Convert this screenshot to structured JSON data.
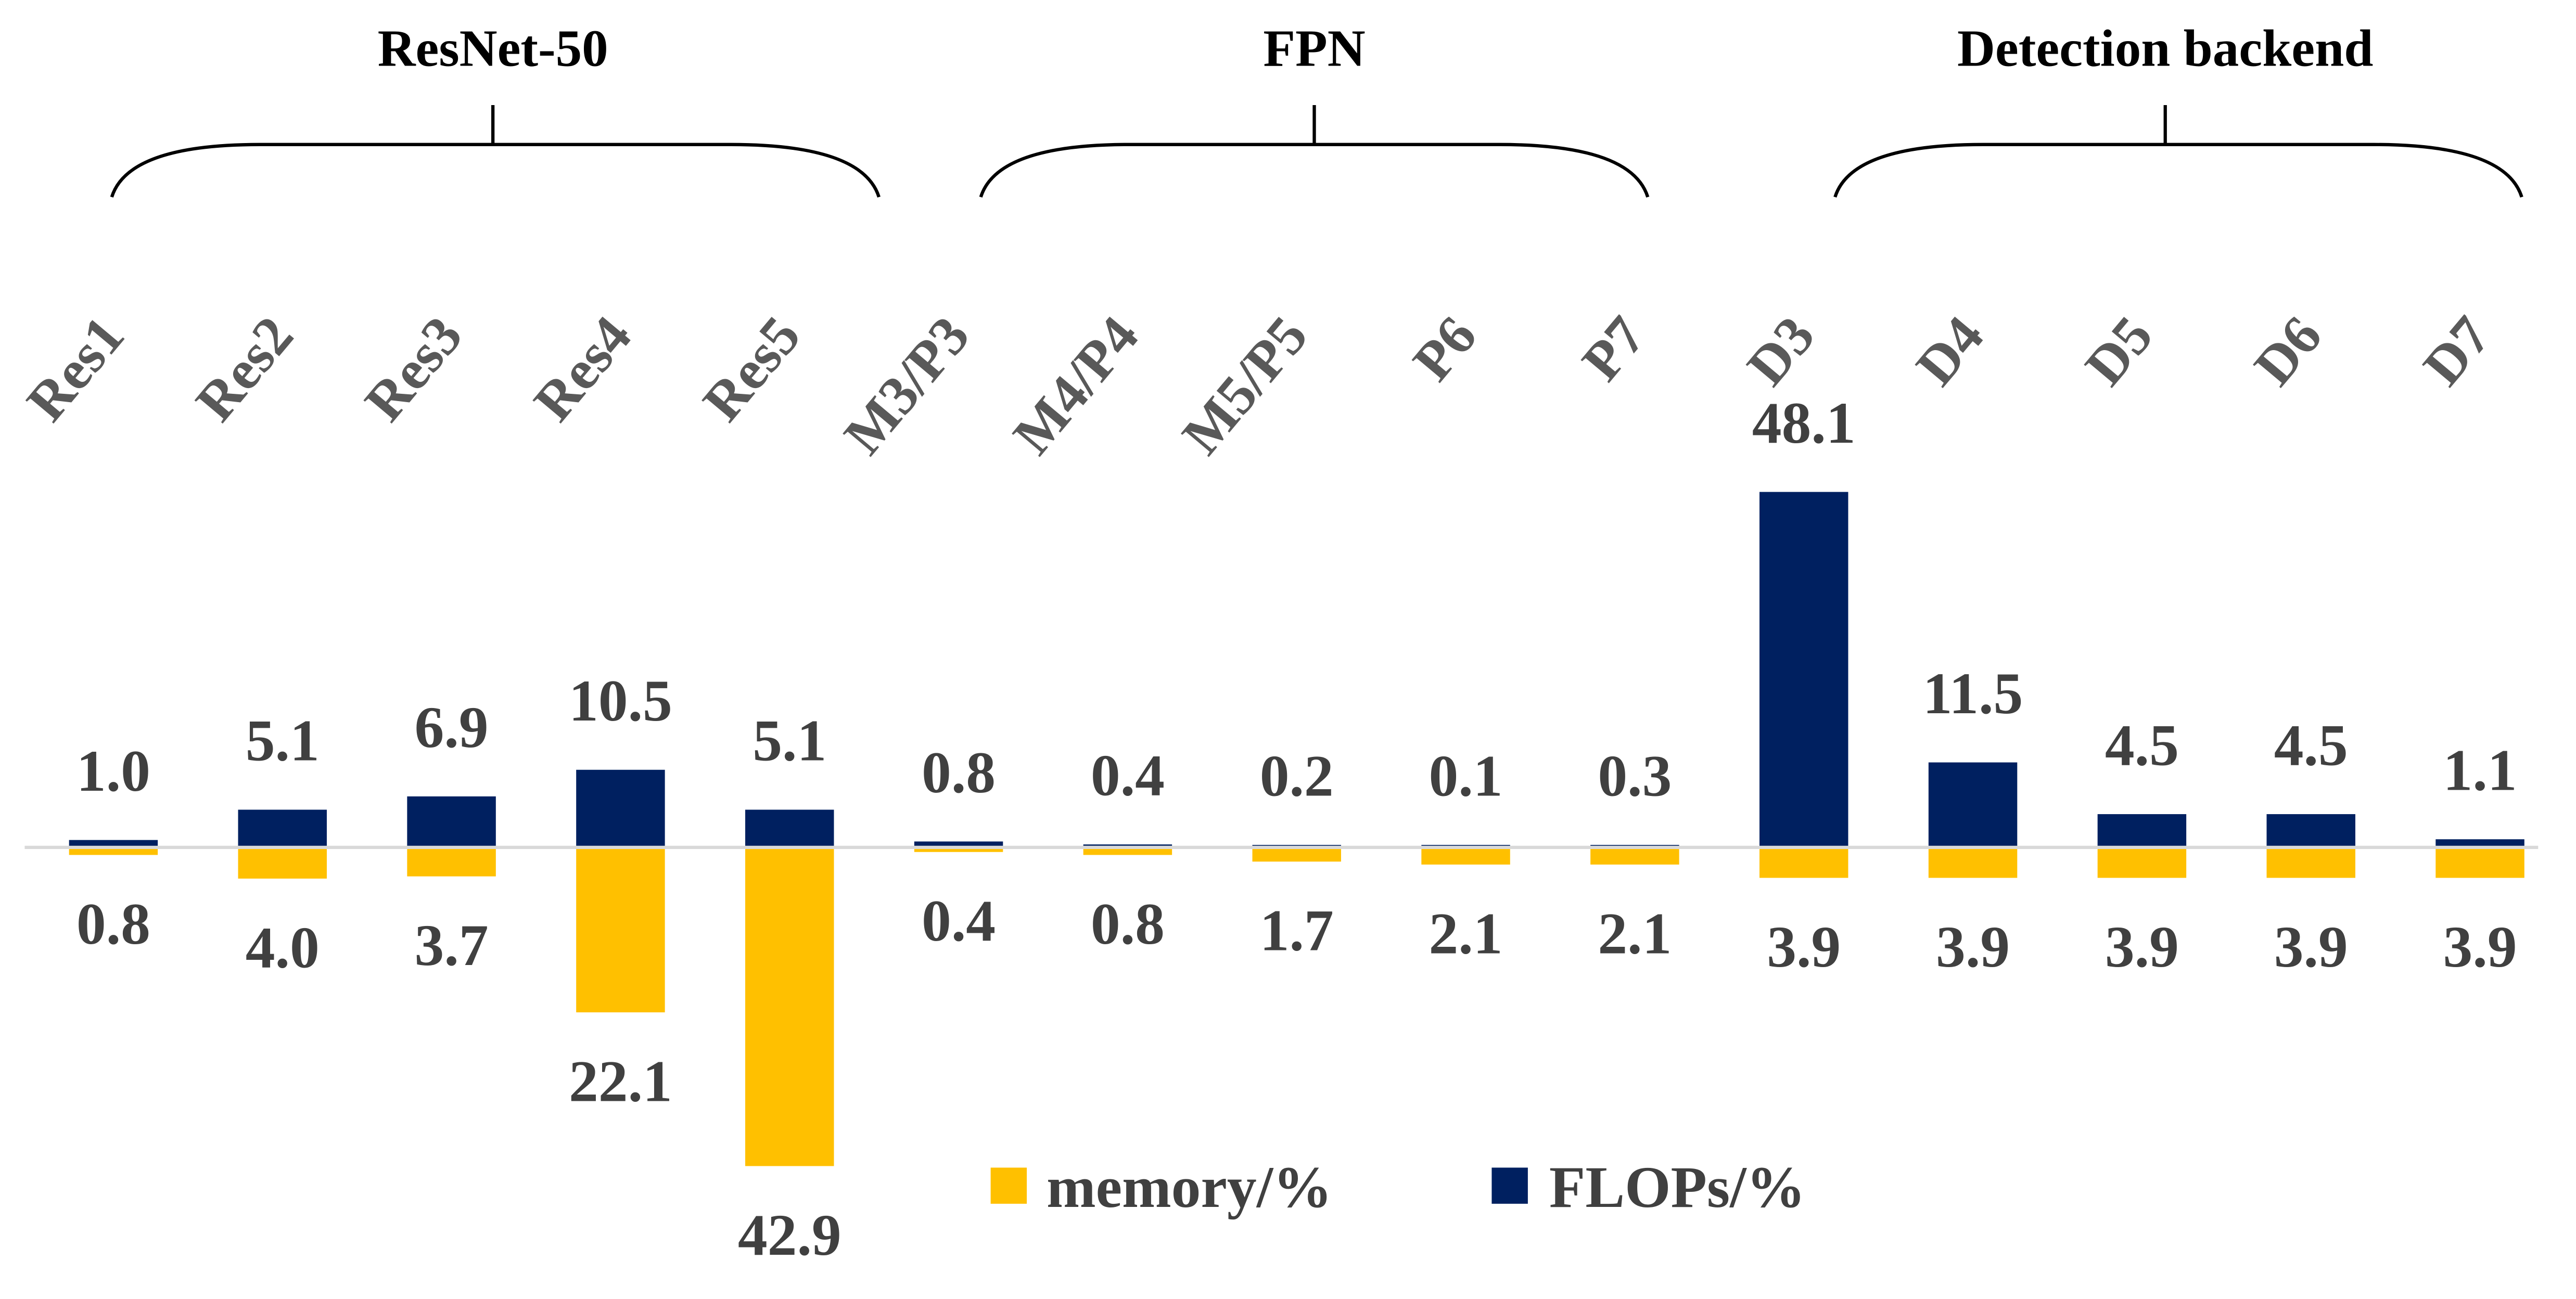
{
  "chart_data": {
    "type": "bar",
    "groups": [
      {
        "label": "ResNet-50",
        "categories": [
          "Res1",
          "Res2",
          "Res3",
          "Res4",
          "Res5"
        ]
      },
      {
        "label": "FPN",
        "categories": [
          "M3/P3",
          "M4/P4",
          "M5/P5",
          "P6",
          "P7"
        ]
      },
      {
        "label": "Detection backend",
        "categories": [
          "D3",
          "D4",
          "D5",
          "D6",
          "D7"
        ]
      }
    ],
    "categories": [
      "Res1",
      "Res2",
      "Res3",
      "Res4",
      "Res5",
      "M3/P3",
      "M4/P4",
      "M5/P5",
      "P6",
      "P7",
      "D3",
      "D4",
      "D5",
      "D6",
      "D7"
    ],
    "series": [
      {
        "name": "memory/%",
        "color": "#FFC000",
        "direction": "down",
        "values": [
          0.8,
          4.0,
          3.7,
          22.1,
          42.9,
          0.4,
          0.8,
          1.7,
          2.1,
          2.1,
          3.9,
          3.9,
          3.9,
          3.9,
          3.9
        ]
      },
      {
        "name": "FLOPs/%",
        "color": "#002060",
        "direction": "up",
        "values": [
          1.0,
          5.1,
          6.9,
          10.5,
          5.1,
          0.8,
          0.4,
          0.2,
          0.1,
          0.3,
          48.1,
          11.5,
          4.5,
          4.5,
          1.1
        ]
      }
    ],
    "title": "",
    "xlabel": "",
    "ylabel": "",
    "legend": "bottom-center",
    "grid": false,
    "text_color": "#404040",
    "axis_color": "#D9D9D9"
  }
}
